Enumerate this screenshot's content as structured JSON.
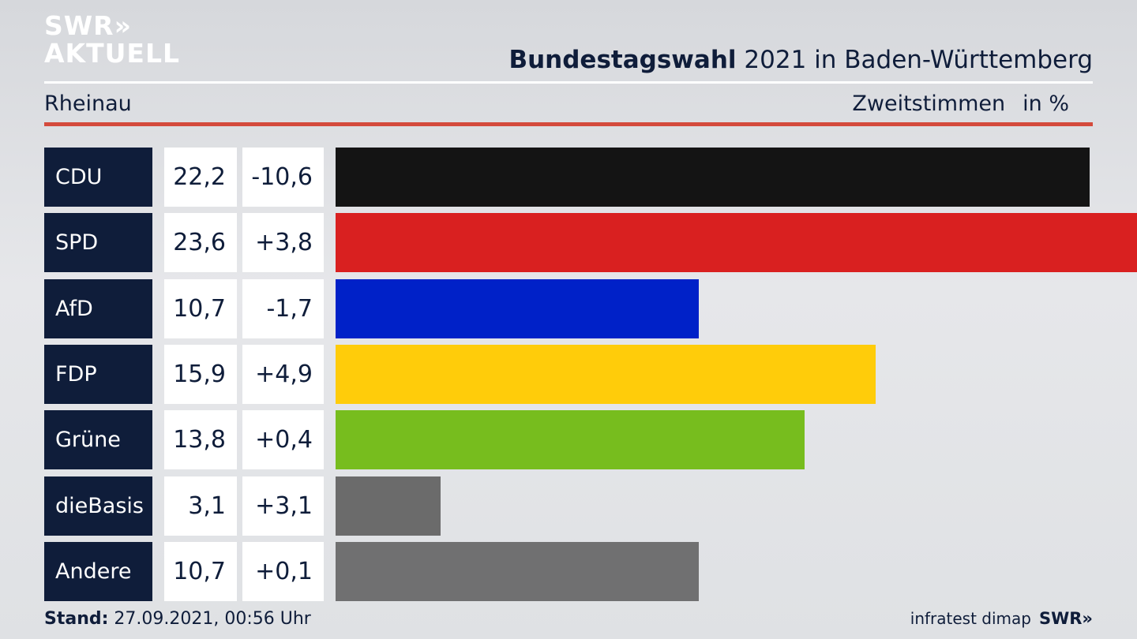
{
  "logo": {
    "line1": "SWR»",
    "line2": "AKTUELL"
  },
  "header": {
    "title_bold": "Bundestagswahl",
    "title_rest": " 2021 in Baden-Württemberg",
    "location": "Rheinau",
    "measure": "Zweitstimmen",
    "unit": "in %"
  },
  "footer": {
    "stand_label": "Stand:",
    "stand_value": " 27.09.2021, 00:56 Uhr",
    "source": "infratest dimap",
    "brand": "SWR»"
  },
  "chart_data": {
    "type": "bar",
    "orientation": "horizontal",
    "categories": [
      "CDU",
      "SPD",
      "AfD",
      "FDP",
      "Grüne",
      "dieBasis",
      "Andere"
    ],
    "values": [
      22.2,
      23.6,
      10.7,
      15.9,
      13.8,
      3.1,
      10.7
    ],
    "value_labels": [
      "22,2",
      "23,6",
      "10,7",
      "15,9",
      "13,8",
      "3,1",
      "10,7"
    ],
    "changes": [
      "-10,6",
      "+3,8",
      "-1,7",
      "+4,9",
      "+0,4",
      "+3,1",
      "+0,1"
    ],
    "colors": [
      "#141414",
      "#d92020",
      "#0021c8",
      "#ffcc0a",
      "#77bd1e",
      "#6b6b6b",
      "#707071"
    ],
    "xlim": [
      0,
      23.6
    ]
  }
}
